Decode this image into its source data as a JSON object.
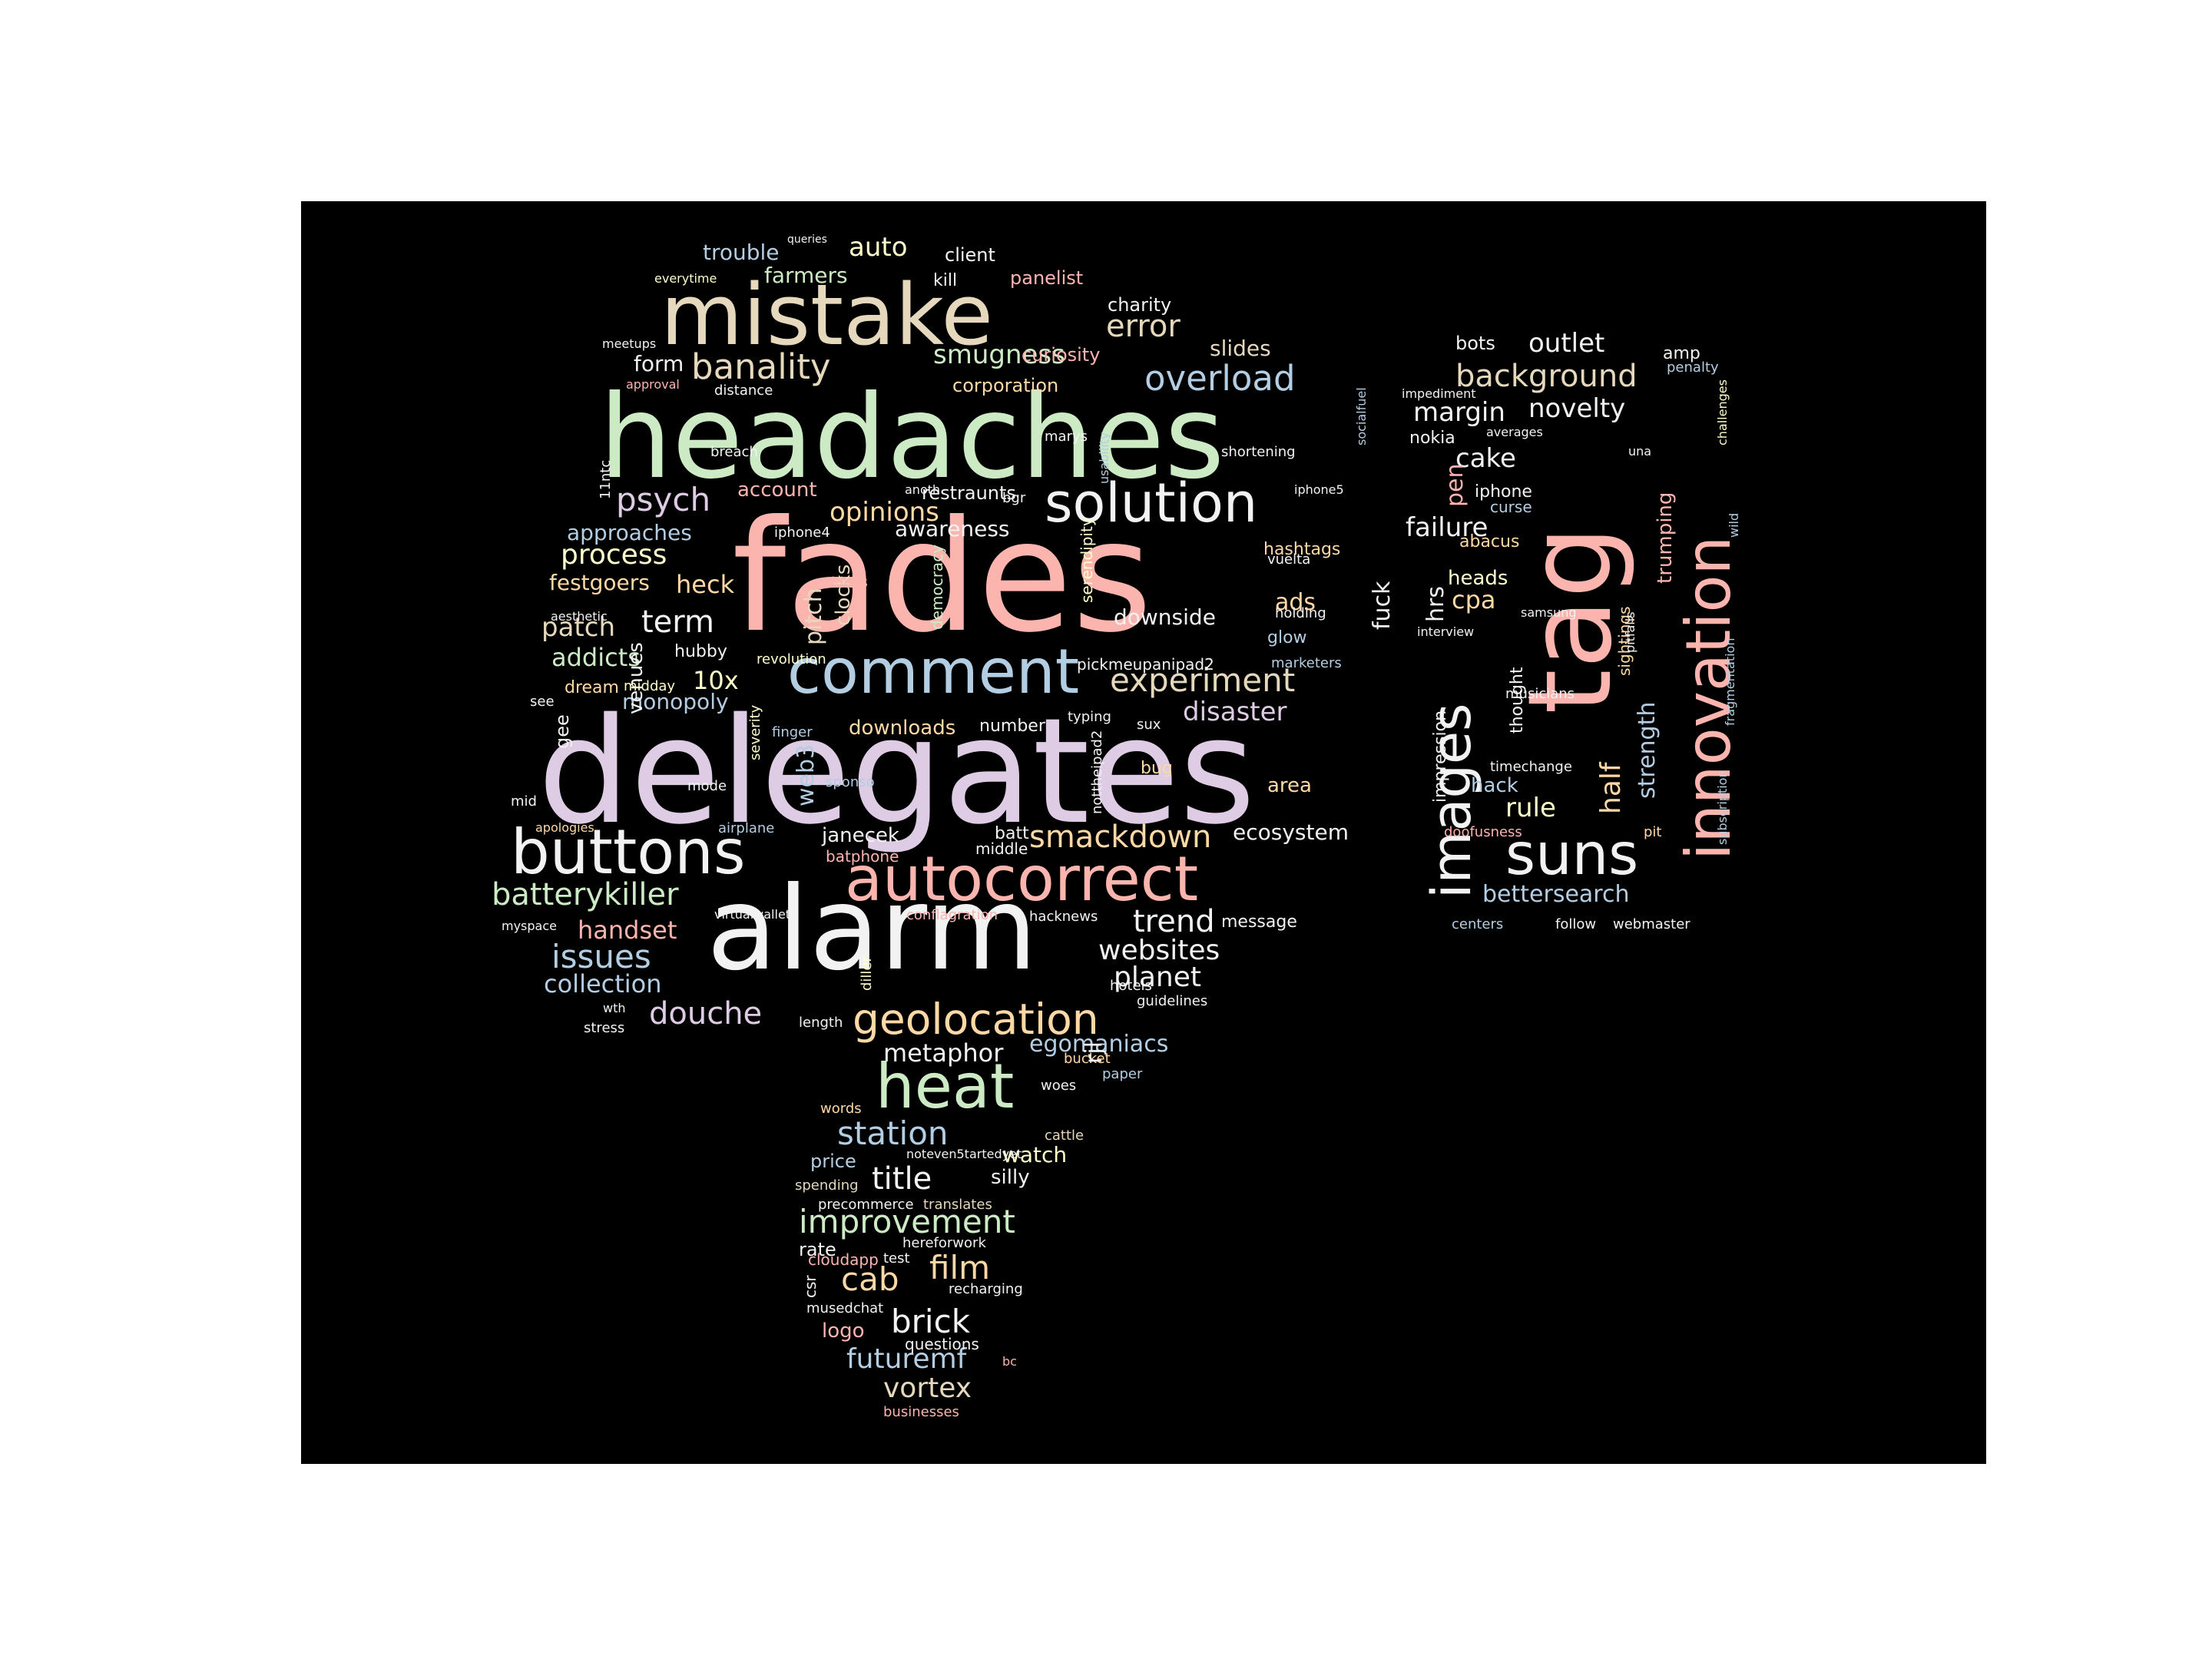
{
  "palette": {
    "background": "#000000",
    "page": "#ffffff",
    "colors": [
      "#fbb4ae",
      "#b3cde3",
      "#ccebc5",
      "#decbe4",
      "#fed9a6",
      "#ffffcc",
      "#e5d8bd",
      "#fddaec",
      "#f2f2f2"
    ]
  },
  "words": [
    "fades",
    "delegates",
    "headaches",
    "alarm",
    "tag",
    "mistake",
    "comment",
    "autocorrect",
    "innovation",
    "buttons",
    "solution",
    "images",
    "suns",
    "heat",
    "geolocation",
    "batterykiller",
    "banality",
    "error",
    "overload",
    "smackdown",
    "experiment",
    "psych",
    "trend",
    "issues",
    "station",
    "improvement",
    "film",
    "cab",
    "brick",
    "vortex",
    "futuremf",
    "title",
    "douche",
    "collection",
    "handset",
    "websites",
    "planet",
    "disaster",
    "ecosystem",
    "metaphor",
    "egomaniacs",
    "auto",
    "trouble",
    "farmers",
    "client",
    "charity",
    "slides",
    "smugness",
    "corporation",
    "form",
    "opinions",
    "awareness",
    "process",
    "heck",
    "festgoers",
    "patch",
    "term",
    "addicts",
    "10x",
    "monopoly",
    "approaches",
    "account",
    "restraunts",
    "outlet",
    "background",
    "margin",
    "novelty",
    "cake",
    "pen",
    "failure",
    "hrs",
    "cpa",
    "heads",
    "strength",
    "half",
    "rule",
    "hack",
    "bettersearch",
    "trumping",
    "sightings",
    "thought",
    "impression",
    "iphone",
    "abacus",
    "curse",
    "nokia",
    "bots",
    "amp",
    "penalty",
    "downside",
    "ads",
    "fuck",
    "glow",
    "hashtags",
    "serendipity",
    "democracy",
    "pitch",
    "clocks",
    "downloads",
    "number",
    "web3",
    "severity",
    "sponso",
    "area",
    "bug",
    "janecek",
    "batt",
    "middle",
    "batphone",
    "silly",
    "watch",
    "price",
    "rate",
    "csr",
    "logo",
    "musedchat",
    "questions",
    "businesses",
    "bc",
    "test",
    "cloudapp",
    "hereforwork",
    "recharging",
    "translates",
    "precommerce",
    "spending",
    "noteven5tartedyet",
    "cattle",
    "words",
    "woes",
    "bucket",
    "paper",
    "rjl",
    "length",
    "stress",
    "wth",
    "guidelines",
    "hotels",
    "message",
    "hacknews",
    "conflagration",
    "virtualwallet",
    "myspace",
    "apologies",
    "airplane",
    "mode",
    "mid",
    "see",
    "venues",
    "finger",
    "dream",
    "midday",
    "hubby",
    "aesthetic",
    "revolution",
    "ideas",
    "iphone4",
    "11ntc",
    "breach",
    "distance",
    "approval",
    "meetups",
    "everytime",
    "queries",
    "panelist",
    "kill",
    "curiosity",
    "marys",
    "bgr",
    "anoth",
    "usability",
    "shortening",
    "socialfuel",
    "iphone5",
    "vuelta",
    "holding",
    "marketers",
    "pickmeupanipad2",
    "typing",
    "sux",
    "nottheipad2",
    "diller",
    "gee",
    "impediment",
    "averages",
    "una",
    "challenges",
    "wild",
    "interview",
    "samsung",
    "pitfalls",
    "fragmentation",
    "musicians",
    "timechange",
    "doofusness",
    "pit",
    "subscription",
    "centers",
    "follow",
    "webmaster"
  ]
}
